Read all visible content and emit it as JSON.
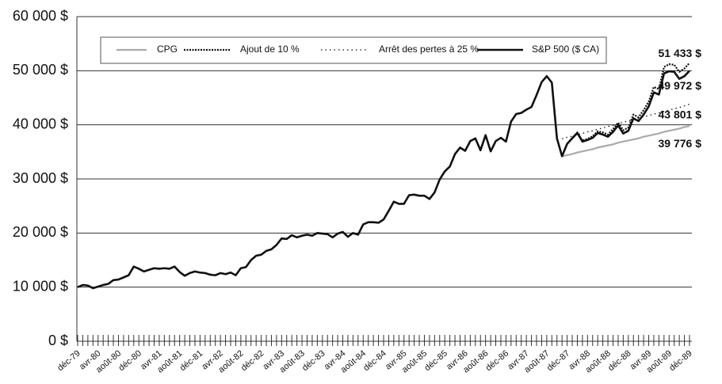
{
  "chart_data": {
    "type": "line",
    "categories": [
      "déc-79",
      null,
      null,
      null,
      "avr-80",
      null,
      null,
      null,
      "août-80",
      null,
      null,
      null,
      "déc-80",
      null,
      null,
      null,
      "avr-81",
      null,
      null,
      null,
      "août-81",
      null,
      null,
      null,
      "déc-81",
      null,
      null,
      null,
      "avr-82",
      null,
      null,
      null,
      "août-82",
      null,
      null,
      null,
      "déc-82",
      null,
      null,
      null,
      "avr-83",
      null,
      null,
      null,
      "août-83",
      null,
      null,
      null,
      "déc-83",
      null,
      null,
      null,
      "avr-84",
      null,
      null,
      null,
      "août-84",
      null,
      null,
      null,
      "déc-84",
      null,
      null,
      null,
      "avr-85",
      null,
      null,
      null,
      "août-85",
      null,
      null,
      null,
      "déc-85",
      null,
      null,
      null,
      "avr-86",
      null,
      null,
      null,
      "août-86",
      null,
      null,
      null,
      "déc-86",
      null,
      null,
      null,
      "avr-87",
      null,
      null,
      null,
      "août-87",
      null,
      null,
      null,
      "déc-87",
      null,
      null,
      null,
      "avr-88",
      null,
      null,
      null,
      "août-88",
      null,
      null,
      null,
      "déc-88",
      null,
      null,
      null,
      "avr-89",
      null,
      null,
      null,
      "août-89",
      null,
      null,
      null,
      "déc-89"
    ],
    "series": [
      {
        "name": "CPG",
        "color": "#aaaaaa",
        "width": 2.2,
        "dash": "none",
        "values": [
          null,
          null,
          null,
          null,
          null,
          null,
          null,
          null,
          null,
          null,
          null,
          null,
          null,
          null,
          null,
          null,
          null,
          null,
          null,
          null,
          null,
          null,
          null,
          null,
          null,
          null,
          null,
          null,
          null,
          null,
          null,
          null,
          null,
          null,
          null,
          null,
          null,
          null,
          null,
          null,
          null,
          null,
          null,
          null,
          null,
          null,
          null,
          null,
          null,
          null,
          null,
          null,
          null,
          null,
          null,
          null,
          null,
          null,
          null,
          null,
          null,
          null,
          null,
          null,
          null,
          null,
          null,
          null,
          null,
          null,
          null,
          null,
          null,
          null,
          null,
          null,
          null,
          null,
          null,
          null,
          null,
          null,
          null,
          null,
          null,
          null,
          null,
          null,
          null,
          null,
          null,
          null,
          null,
          null,
          null,
          34200,
          34400,
          34600,
          34900,
          35100,
          35300,
          35500,
          35800,
          36000,
          36200,
          36400,
          36700,
          36900,
          37100,
          37300,
          37500,
          37800,
          38000,
          38200,
          38400,
          38700,
          38900,
          39100,
          39300,
          39600,
          39776
        ],
        "value_labels": [
          null,
          null,
          null,
          null,
          null,
          null,
          null,
          null,
          null,
          null,
          null,
          null,
          null,
          null,
          null,
          null,
          null,
          null,
          null,
          null,
          null,
          null,
          null,
          null,
          null,
          null,
          null,
          null,
          null,
          null,
          null,
          null,
          null,
          null,
          null,
          null,
          null,
          null,
          null,
          null,
          null,
          null,
          null,
          null,
          null,
          null,
          null,
          null,
          null,
          null,
          null,
          null,
          null,
          null,
          null,
          null,
          null,
          null,
          null,
          null,
          null,
          null,
          null,
          null,
          null,
          null,
          null,
          null,
          null,
          null,
          null,
          null,
          null,
          null,
          null,
          null,
          null,
          null,
          null,
          null,
          null,
          null,
          null,
          null,
          null,
          null,
          null,
          null,
          null,
          null,
          null,
          null,
          null,
          null,
          null,
          null,
          null,
          null,
          null,
          null,
          null,
          null,
          null,
          null,
          null,
          null,
          null,
          null,
          null,
          null,
          null,
          null,
          null,
          null,
          null,
          null,
          null,
          null,
          null,
          null,
          "39 776 $"
        ]
      },
      {
        "name": "Ajout de 10 %",
        "color": "#111111",
        "width": 2.2,
        "dash": "2 1.5",
        "values": [
          null,
          null,
          null,
          null,
          null,
          null,
          null,
          null,
          null,
          null,
          null,
          null,
          null,
          null,
          null,
          null,
          null,
          null,
          null,
          null,
          null,
          null,
          null,
          null,
          null,
          null,
          null,
          null,
          null,
          null,
          null,
          null,
          null,
          null,
          null,
          null,
          null,
          null,
          null,
          null,
          null,
          null,
          null,
          null,
          null,
          null,
          null,
          null,
          null,
          null,
          null,
          null,
          null,
          null,
          null,
          null,
          null,
          null,
          null,
          null,
          null,
          null,
          null,
          null,
          null,
          null,
          null,
          null,
          null,
          null,
          null,
          null,
          null,
          null,
          null,
          null,
          null,
          null,
          null,
          null,
          null,
          null,
          null,
          null,
          null,
          null,
          null,
          null,
          null,
          null,
          null,
          null,
          null,
          null,
          null,
          34200,
          36500,
          37600,
          38600,
          37100,
          37400,
          37900,
          38800,
          38600,
          38200,
          39200,
          40400,
          39000,
          39500,
          41900,
          41400,
          42700,
          44300,
          47000,
          46600,
          50700,
          51200,
          51100,
          49800,
          50400,
          51433
        ],
        "value_labels": [
          null,
          null,
          null,
          null,
          null,
          null,
          null,
          null,
          null,
          null,
          null,
          null,
          null,
          null,
          null,
          null,
          null,
          null,
          null,
          null,
          null,
          null,
          null,
          null,
          null,
          null,
          null,
          null,
          null,
          null,
          null,
          null,
          null,
          null,
          null,
          null,
          null,
          null,
          null,
          null,
          null,
          null,
          null,
          null,
          null,
          null,
          null,
          null,
          null,
          null,
          null,
          null,
          null,
          null,
          null,
          null,
          null,
          null,
          null,
          null,
          null,
          null,
          null,
          null,
          null,
          null,
          null,
          null,
          null,
          null,
          null,
          null,
          null,
          null,
          null,
          null,
          null,
          null,
          null,
          null,
          null,
          null,
          null,
          null,
          null,
          null,
          null,
          null,
          null,
          null,
          null,
          null,
          null,
          null,
          null,
          null,
          null,
          null,
          null,
          null,
          null,
          null,
          null,
          null,
          null,
          null,
          null,
          null,
          null,
          null,
          null,
          null,
          null,
          null,
          null,
          null,
          null,
          null,
          null,
          null,
          "51 433 $"
        ]
      },
      {
        "name": "Arrêt des pertes à 25 %",
        "color": "#111111",
        "width": 1.3,
        "dash": "1.5 4",
        "values": [
          null,
          null,
          null,
          null,
          null,
          null,
          null,
          null,
          null,
          null,
          null,
          null,
          null,
          null,
          null,
          null,
          null,
          null,
          null,
          null,
          null,
          null,
          null,
          null,
          null,
          null,
          null,
          null,
          null,
          null,
          null,
          null,
          null,
          null,
          null,
          null,
          null,
          null,
          null,
          null,
          null,
          null,
          null,
          null,
          null,
          null,
          null,
          null,
          null,
          null,
          null,
          null,
          null,
          null,
          null,
          null,
          null,
          null,
          null,
          null,
          null,
          null,
          null,
          null,
          null,
          null,
          null,
          null,
          null,
          null,
          null,
          null,
          null,
          null,
          null,
          null,
          null,
          null,
          null,
          null,
          null,
          null,
          null,
          null,
          null,
          null,
          null,
          null,
          null,
          null,
          null,
          null,
          null,
          null,
          null,
          37400,
          37700,
          37900,
          38200,
          38400,
          38700,
          38900,
          39200,
          39400,
          39700,
          39900,
          40200,
          40500,
          40700,
          41000,
          41200,
          41500,
          41700,
          42000,
          42200,
          42500,
          42700,
          43000,
          43200,
          43500,
          43801
        ],
        "value_labels": [
          null,
          null,
          null,
          null,
          null,
          null,
          null,
          null,
          null,
          null,
          null,
          null,
          null,
          null,
          null,
          null,
          null,
          null,
          null,
          null,
          null,
          null,
          null,
          null,
          null,
          null,
          null,
          null,
          null,
          null,
          null,
          null,
          null,
          null,
          null,
          null,
          null,
          null,
          null,
          null,
          null,
          null,
          null,
          null,
          null,
          null,
          null,
          null,
          null,
          null,
          null,
          null,
          null,
          null,
          null,
          null,
          null,
          null,
          null,
          null,
          null,
          null,
          null,
          null,
          null,
          null,
          null,
          null,
          null,
          null,
          null,
          null,
          null,
          null,
          null,
          null,
          null,
          null,
          null,
          null,
          null,
          null,
          null,
          null,
          null,
          null,
          null,
          null,
          null,
          null,
          null,
          null,
          null,
          null,
          null,
          null,
          null,
          null,
          null,
          null,
          null,
          null,
          null,
          null,
          null,
          null,
          null,
          null,
          null,
          null,
          null,
          null,
          null,
          null,
          null,
          null,
          null,
          null,
          null,
          null,
          "43 801 $"
        ]
      },
      {
        "name": "S&P 500 ($ CA)",
        "color": "#111111",
        "width": 2.6,
        "dash": "none",
        "values": [
          10000,
          10400,
          10300,
          9800,
          10100,
          10400,
          10600,
          11300,
          11400,
          11800,
          12200,
          13800,
          13400,
          12900,
          13200,
          13500,
          13400,
          13500,
          13400,
          13800,
          12800,
          12100,
          12600,
          12900,
          12700,
          12600,
          12300,
          12200,
          12600,
          12400,
          12700,
          12200,
          13500,
          13700,
          15000,
          15800,
          16000,
          16700,
          17000,
          17800,
          19000,
          18900,
          19600,
          19200,
          19500,
          19700,
          19500,
          20000,
          19900,
          19800,
          19200,
          19900,
          20200,
          19300,
          20000,
          19700,
          21600,
          22000,
          22000,
          21900,
          22500,
          24100,
          25800,
          25400,
          25400,
          27000,
          27100,
          26900,
          26900,
          26300,
          27500,
          29900,
          31400,
          32300,
          34600,
          35800,
          35200,
          37000,
          37500,
          35300,
          38100,
          35100,
          37000,
          37600,
          36900,
          40600,
          42000,
          42200,
          42800,
          43300,
          45500,
          47900,
          49000,
          47800,
          37500,
          34200,
          36500,
          37500,
          38500,
          36900,
          37200,
          37600,
          38500,
          38200,
          37800,
          38700,
          39900,
          38400,
          38900,
          41200,
          40700,
          41900,
          43400,
          46000,
          45600,
          49500,
          49900,
          49800,
          48500,
          49000,
          49972
        ],
        "value_labels": [
          null,
          null,
          null,
          null,
          null,
          null,
          null,
          null,
          null,
          null,
          null,
          null,
          null,
          null,
          null,
          null,
          null,
          null,
          null,
          null,
          null,
          null,
          null,
          null,
          null,
          null,
          null,
          null,
          null,
          null,
          null,
          null,
          null,
          null,
          null,
          null,
          null,
          null,
          null,
          null,
          null,
          null,
          null,
          null,
          null,
          null,
          null,
          null,
          null,
          null,
          null,
          null,
          null,
          null,
          null,
          null,
          null,
          null,
          null,
          null,
          null,
          null,
          null,
          null,
          null,
          null,
          null,
          null,
          null,
          null,
          null,
          null,
          null,
          null,
          null,
          null,
          null,
          null,
          null,
          null,
          null,
          null,
          null,
          null,
          null,
          null,
          null,
          null,
          null,
          null,
          null,
          null,
          null,
          null,
          null,
          null,
          null,
          null,
          null,
          null,
          null,
          null,
          null,
          null,
          null,
          null,
          null,
          null,
          null,
          null,
          null,
          null,
          null,
          null,
          null,
          null,
          null,
          null,
          null,
          null,
          "49 972 $"
        ]
      }
    ],
    "ylim": [
      0,
      60000
    ],
    "yticks": [
      {
        "value": 0,
        "label": "0 $"
      },
      {
        "value": 10000,
        "label": "10 000 $"
      },
      {
        "value": 20000,
        "label": "20 000 $"
      },
      {
        "value": 30000,
        "label": "30 000 $"
      },
      {
        "value": 40000,
        "label": "40 000 $"
      },
      {
        "value": 50000,
        "label": "50 000 $"
      },
      {
        "value": 60000,
        "label": "60 000 $"
      }
    ],
    "grid": true
  }
}
